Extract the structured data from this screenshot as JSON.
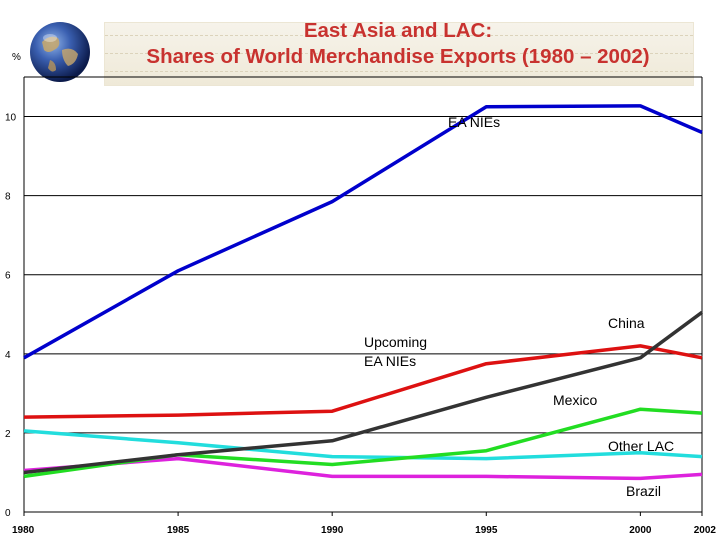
{
  "title_line1": "East Asia and LAC:",
  "title_line2": "Shares of World Merchandise Exports (1980 – 2002)",
  "unit": "%",
  "colors": {
    "title": "#c8322f",
    "grid": "#000000"
  },
  "chart_data": {
    "type": "line",
    "title": "East Asia and LAC: Shares of World Merchandise Exports (1980 – 2002)",
    "ylabel": "%",
    "xlabel": "",
    "x": [
      1980,
      1985,
      1990,
      1995,
      2000,
      2002
    ],
    "x_ticks": [
      "1980",
      "1985",
      "1990",
      "1995",
      "2000",
      "2002"
    ],
    "y_ticks": [
      "0",
      "2",
      "4",
      "6",
      "8",
      "10"
    ],
    "ylim": [
      0,
      11
    ],
    "grid": true,
    "series": [
      {
        "name": "EA NIEs",
        "color": "#0000cc",
        "values": [
          3.9,
          6.1,
          7.85,
          10.25,
          10.27,
          9.6
        ]
      },
      {
        "name": "China",
        "color": "#333333",
        "values": [
          1.0,
          1.45,
          1.8,
          2.9,
          3.9,
          5.05
        ]
      },
      {
        "name": "Upcoming EA NIEs",
        "color": "#dd1111",
        "values": [
          2.4,
          2.45,
          2.55,
          3.75,
          4.2,
          3.9
        ]
      },
      {
        "name": "Mexico",
        "color": "#22dd22",
        "values": [
          0.9,
          1.45,
          1.2,
          1.55,
          2.6,
          2.5
        ]
      },
      {
        "name": "Other LAC",
        "color": "#22dddd",
        "values": [
          2.05,
          1.75,
          1.4,
          1.35,
          1.5,
          1.4
        ]
      },
      {
        "name": "Brazil",
        "color": "#dd22dd",
        "values": [
          1.05,
          1.35,
          0.9,
          0.9,
          0.85,
          0.95
        ]
      }
    ]
  }
}
